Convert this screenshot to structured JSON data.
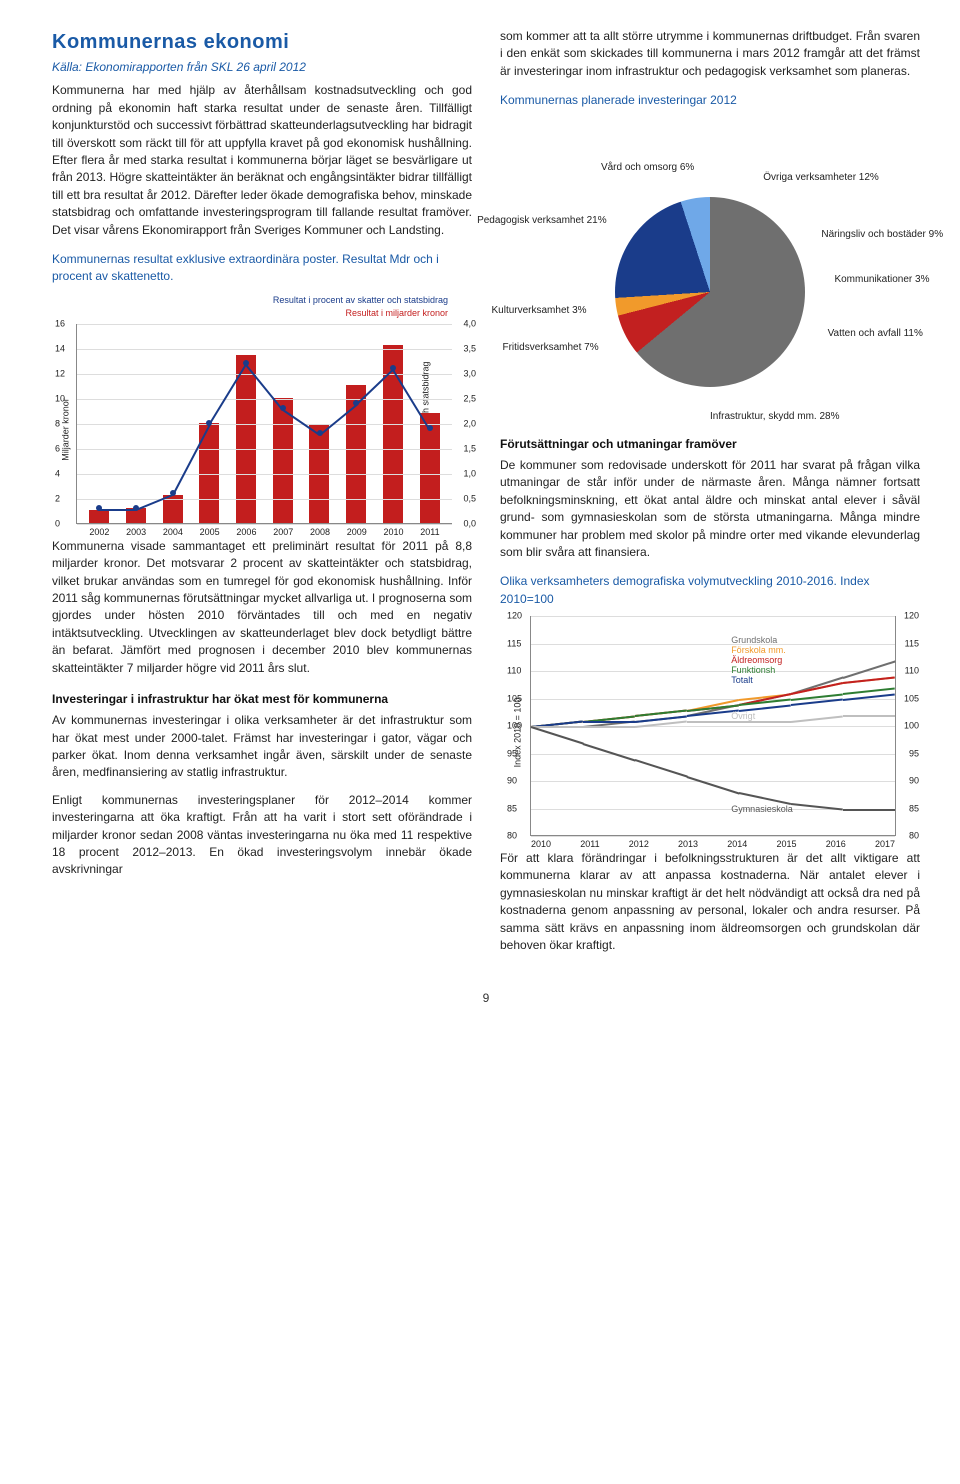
{
  "title": "Kommunernas ekonomi",
  "source": "Källa: Ekonomirapporten från SKL 26 april 2012",
  "left": {
    "intro": "Kommunerna har med hjälp av återhållsam kostnadsutveckling och god ordning på ekonomin haft starka resultat under de senaste åren. Tillfälligt konjunkturstöd och successivt förbättrad skatteunderlagsutveckling har bidragit till överskott som räckt till för att uppfylla kravet på god ekonomisk hushållning. Efter flera år med starka resultat i kommunerna börjar läget se besvärligare ut från 2013. Högre skatteintäkter än beräknat och engångsintäkter bidrar tillfälligt till ett bra resultat år 2012. Därefter leder ökade demografiska behov, minskade statsbidrag och omfattande investeringsprogram till fallande resultat framöver. Det visar vårens Ekonomirapport från Sveriges Kommuner och Landsting.",
    "chart1_title": "Kommunernas resultat exklusive extraordinära poster. Resultat Mdr och i procent av skattenetto.",
    "chart1": {
      "type": "bar+line",
      "years": [
        "2002",
        "2003",
        "2004",
        "2005",
        "2006",
        "2007",
        "2008",
        "2009",
        "2010",
        "2011"
      ],
      "bar_values": [
        1.0,
        1.2,
        2.2,
        8.0,
        13.4,
        10.0,
        7.8,
        11.0,
        14.2,
        8.8
      ],
      "bar_color": "#c31e1e",
      "line_values_pct": [
        0.3,
        0.3,
        0.6,
        2.0,
        3.2,
        2.3,
        1.8,
        2.4,
        3.1,
        1.9
      ],
      "line_color": "#1a3c8a",
      "y_left_max": 16,
      "y_left_step": 2,
      "y_right_max": 4.0,
      "y_right_step": 0.5,
      "y_left_title": "Miljarder kronor",
      "y_right_title": "Procent av skatter och statsbidrag",
      "legend_line": "Resultat i procent av skatter och statsbidrag",
      "legend_bar": "Resultat i miljarder kronor",
      "grid_color": "#dddddd"
    },
    "p2": "Kommunerna visade sammantaget ett preliminärt resultat för 2011 på 8,8 miljarder kronor. Det motsvarar 2 procent av skatteintäkter och statsbidrag, vilket brukar användas som en tumregel för god ekonomisk hushållning. Inför 2011 såg kommunernas förutsättningar mycket allvarliga ut. I prognoserna som gjordes under hösten 2010 förväntades till och med en negativ intäktsutveckling. Utvecklingen av skatteunderlaget blev dock betydligt bättre än befarat. Jämfört med prognosen i december 2010 blev kommunernas skatteintäkter 7 miljarder högre vid 2011 års slut.",
    "sub2": "Investeringar i infrastruktur har ökat mest för kommunerna",
    "p3": "Av kommunernas investeringar i olika verksamheter är det infrastruktur som har ökat mest under 2000-talet. Främst har investeringar i gator, vägar och parker ökat. Inom denna verksamhet ingår även, särskilt under de senaste åren, medfinansiering av statlig infrastruktur.",
    "p4": "Enligt kommunernas investeringsplaner för 2012–2014 kommer investeringarna att öka kraftigt. Från att ha varit i stort sett oförändrade i miljarder kronor sedan 2008 väntas investeringarna nu öka med 11 respektive 18 procent 2012–2013. En ökad investeringsvolym innebär ökade avskrivningar"
  },
  "right": {
    "p1": "som kommer att ta allt större utrymme i kommunernas driftbudget. Från svaren i den enkät som skickades till kommunerna i mars 2012 framgår att det främst är investeringar inom infrastruktur och pedagogisk verksamhet som planeras.",
    "pie_title": "Kommunernas planerade investeringar 2012",
    "pie": {
      "type": "pie",
      "slices": [
        {
          "label": "Infrastruktur, skydd mm. 28%",
          "value": 28,
          "color": "#6f6f6f"
        },
        {
          "label": "Fritidsverksamhet 7%",
          "value": 7,
          "color": "#c22020"
        },
        {
          "label": "Kulturverksamhet 3%",
          "value": 3,
          "color": "#f19a2b"
        },
        {
          "label": "Pedagogisk verksamhet 21%",
          "value": 21,
          "color": "#1a3c8a"
        },
        {
          "label": "Vård och omsorg 6%",
          "value": 6,
          "color": "#6fa8e8"
        },
        {
          "label": "Övriga verksamheter 12%",
          "value": 12,
          "color": "#bfbfbf"
        },
        {
          "label": "Näringsliv och bostäder 9%",
          "value": 9,
          "color": "#4d4d4d"
        },
        {
          "label": "Kommunikationer 3%",
          "value": 3,
          "color": "#8a8a8a"
        },
        {
          "label": "Vatten och avfall 11%",
          "value": 11,
          "color": "#d9d9d9"
        }
      ]
    },
    "sub3": "Förutsättningar och utmaningar framöver",
    "p5": "De kommuner som redovisade underskott för 2011 har svarat på frågan vilka utmaningar de står inför under de närmaste åren. Många nämner fortsatt befolkningsminskning, ett ökat antal äldre och minskat antal elever i såväl grund- som gymnasieskolan som de största utmaningarna. Många mindre kommuner har problem med skolor på mindre orter med vikande elevunderlag som blir svåra att finansiera.",
    "idx_title": "Olika verksamheters demografiska volymutveckling 2010-2016. Index 2010=100",
    "idx": {
      "type": "line",
      "years": [
        "2010",
        "2011",
        "2012",
        "2013",
        "2014",
        "2015",
        "2016",
        "2017"
      ],
      "ymin": 80,
      "ymax": 120,
      "ystep": 5,
      "y_title": "Index 2010 = 100",
      "series": [
        {
          "name": "Grundskola",
          "color": "#6f6f6f",
          "values": [
            100,
            100,
            101,
            102,
            104,
            106,
            109,
            112
          ]
        },
        {
          "name": "Förskola mm.",
          "color": "#f19a2b",
          "values": [
            100,
            101,
            102,
            103,
            105,
            106,
            108,
            109
          ]
        },
        {
          "name": "Äldreomsorg",
          "color": "#c22020",
          "values": [
            100,
            101,
            102,
            103,
            104,
            106,
            108,
            109
          ]
        },
        {
          "name": "Funktionsh",
          "color": "#2e7d32",
          "values": [
            100,
            101,
            102,
            103,
            104,
            105,
            106,
            107
          ]
        },
        {
          "name": "Totalt",
          "color": "#1a3c8a",
          "values": [
            100,
            101,
            101,
            102,
            103,
            104,
            105,
            106
          ]
        },
        {
          "name": "Övrigt",
          "color": "#bfbfbf",
          "values": [
            100,
            100,
            100,
            101,
            101,
            101,
            102,
            102
          ]
        },
        {
          "name": "Gymnasieskola",
          "color": "#555555",
          "values": [
            100,
            97,
            94,
            91,
            88,
            86,
            85,
            85
          ]
        }
      ],
      "grid_color": "#dddddd"
    },
    "p6": "För att klara förändringar i befolkningsstrukturen är det allt viktigare att kommunerna klarar av att anpassa kostnaderna. När antalet elever i gymnasieskolan nu minskar kraftigt är det helt nödvändigt att också dra ned på kostnaderna genom anpassning av personal, lokaler och andra resurser. På samma sätt krävs en anpassning inom äldreomsorgen och grundskolan där behoven ökar kraftigt."
  },
  "pagenum": "9"
}
